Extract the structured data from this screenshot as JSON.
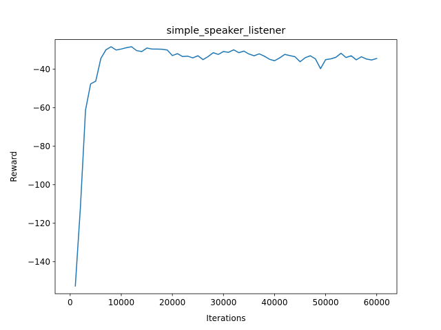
{
  "chart_data": {
    "type": "line",
    "title": "simple_speaker_listener",
    "xlabel": "Iterations",
    "ylabel": "Reward",
    "xlim": [
      -2950,
      63950
    ],
    "ylim": [
      -156.6,
      -24.6
    ],
    "xticks": [
      0,
      10000,
      20000,
      30000,
      40000,
      50000,
      60000
    ],
    "yticks": [
      -140,
      -120,
      -100,
      -80,
      -60,
      -40
    ],
    "grid": false,
    "line_color": "#1f77b4",
    "series": [
      {
        "x": [
          1000,
          2000,
          3000,
          4000,
          5000,
          6000,
          7000,
          8000,
          9000,
          10000,
          11000,
          12000,
          13000,
          14000,
          15000,
          16000,
          17000,
          18000,
          19000,
          20000,
          21000,
          22000,
          23000,
          24000,
          25000,
          26000,
          27000,
          28000,
          29000,
          30000,
          31000,
          32000,
          33000,
          34000,
          35000,
          36000,
          37000,
          38000,
          39000,
          40000,
          41000,
          42000,
          43000,
          44000,
          45000,
          46000,
          47000,
          48000,
          49000,
          50000,
          51000,
          52000,
          53000,
          54000,
          55000,
          56000,
          57000,
          58000,
          59000,
          60000
        ],
        "values": [
          -152.6,
          -111.7,
          -61.2,
          -47.6,
          -46.2,
          -34.4,
          -29.9,
          -28.3,
          -30.0,
          -29.5,
          -28.8,
          -28.3,
          -30.3,
          -30.8,
          -29.0,
          -29.5,
          -29.5,
          -29.6,
          -30.0,
          -32.9,
          -31.9,
          -33.4,
          -33.2,
          -34.1,
          -33.0,
          -35.0,
          -33.4,
          -31.4,
          -32.3,
          -30.8,
          -31.2,
          -29.9,
          -31.4,
          -30.6,
          -32.1,
          -33.0,
          -32.0,
          -33.2,
          -34.8,
          -35.6,
          -34.1,
          -32.3,
          -32.9,
          -33.5,
          -36.1,
          -34.0,
          -33.0,
          -34.6,
          -39.7,
          -35.0,
          -34.6,
          -33.8,
          -31.7,
          -33.9,
          -33.0,
          -35.1,
          -33.5,
          -34.7,
          -35.2,
          -34.4
        ]
      }
    ]
  }
}
